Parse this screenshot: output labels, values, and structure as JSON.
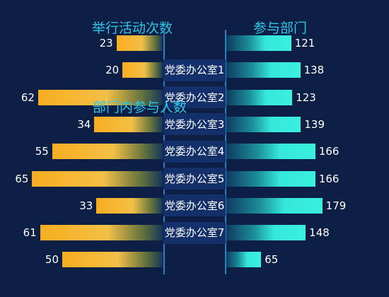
{
  "chart_data": {
    "type": "bar",
    "title_left": "举行活动次数",
    "title_right": "参与部门",
    "subtitle_left": "部门内参与人数",
    "categories": [
      "",
      "党委办公室1",
      "党委办公室2",
      "党委办公室3",
      "党委办公室4",
      "党委办公室5",
      "党委办公室6",
      "党委办公室7",
      ""
    ],
    "series": [
      {
        "name": "举行活动次数",
        "values": [
          23,
          20,
          62,
          34,
          55,
          65,
          33,
          61,
          50
        ]
      },
      {
        "name": "参与部门",
        "values": [
          121,
          138,
          123,
          139,
          166,
          166,
          179,
          148,
          65
        ]
      }
    ],
    "colors": {
      "left_bar": "#f6ad21",
      "right_bar": "#3af0dd",
      "title": "#2dc6e6",
      "background": "#0d1f45"
    },
    "grid": false
  }
}
